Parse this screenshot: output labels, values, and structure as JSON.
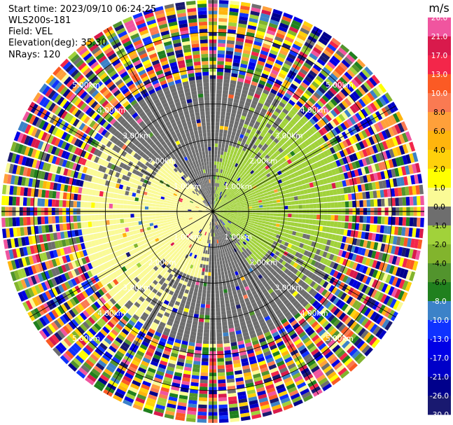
{
  "header": {
    "start_time": "Start time: 2023/09/10 06:24:25",
    "instrument": "WLS200s-181",
    "field": "Field: VEL",
    "elevation": "Elevation(deg): 35.30",
    "nrays": "NRays: 120"
  },
  "colorbar": {
    "unit": "m/s",
    "ticks": [
      "26.0",
      "21.0",
      "17.0",
      "13.0",
      "10.0",
      "8.0",
      "6.0",
      "4.0",
      "2.0",
      "1.0",
      "0.0",
      "-1.0",
      "-2.0",
      "-4.0",
      "-6.0",
      "-8.0",
      "-10.0",
      "-13.0",
      "-17.0",
      "-21.0",
      "-26.0",
      "-30.0"
    ],
    "colors": [
      "#f0559f",
      "#d91a4c",
      "#f3264a",
      "#fb5a24",
      "#fa7a52",
      "#ffa03a",
      "#ffb50d",
      "#ffd10b",
      "#ffff00",
      "#fafa96",
      "#6e6e6e",
      "#a1d23a",
      "#82b42d",
      "#52942d",
      "#20801e",
      "#3c82c8",
      "#0f32ff",
      "#0000e6",
      "#0000c8",
      "#00008c",
      "#191970"
    ]
  },
  "chart_data": {
    "type": "heatmap",
    "projection": "polar PPI",
    "field": "VEL",
    "units": "m/s",
    "n_rays": 120,
    "elevation_deg": 35.3,
    "range_ring_labels": [
      "1.00km",
      "2.00km",
      "3.00km",
      "4.00km",
      "5.00km"
    ],
    "range_rings_km": [
      1,
      2,
      3,
      4,
      5
    ],
    "max_range_km": 5.9,
    "spokes_deg": [
      0,
      30,
      60,
      90,
      120,
      150,
      180,
      210,
      240,
      270,
      300,
      330
    ],
    "vmin": -30.0,
    "vmax": 30.0,
    "pattern": {
      "near_field_sign": "positive toward west/southwest, negative toward east/northeast",
      "noise_beyond_km": 3.6
    }
  }
}
